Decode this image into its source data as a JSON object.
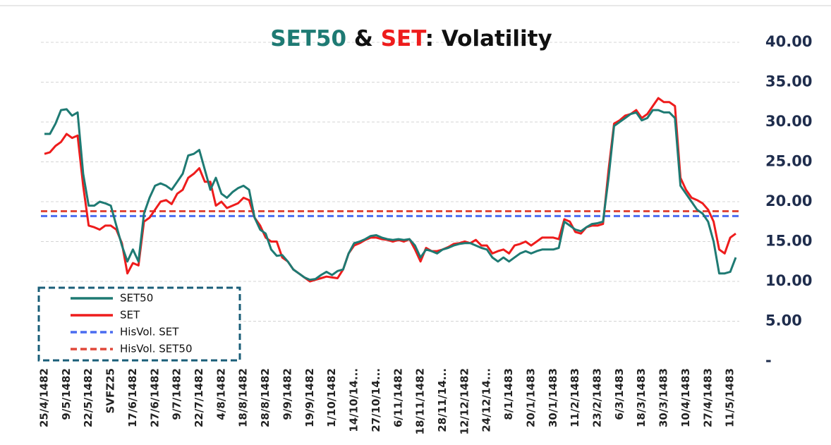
{
  "chart_data": {
    "type": "line",
    "title": [
      {
        "text": "SET50",
        "color": "#1e7a73"
      },
      {
        "text": " & ",
        "color": "#111111"
      },
      {
        "text": "SET",
        "color": "#ee1c1c"
      },
      {
        "text": ": Volatility",
        "color": "#111111"
      }
    ],
    "categories": [
      "25/4/1482",
      null,
      null,
      null,
      "9/5/1482",
      null,
      null,
      null,
      "22/5/1482",
      null,
      null,
      null,
      "SVFZ25",
      null,
      null,
      null,
      "17/6/1482",
      null,
      null,
      null,
      "27/6/1482",
      null,
      null,
      null,
      "9/7/1482",
      null,
      null,
      null,
      "22/7/1482",
      null,
      null,
      null,
      "4/8/1482",
      null,
      null,
      null,
      "18/8/1482",
      null,
      null,
      null,
      "28/8/1482",
      null,
      null,
      null,
      "9/9/1482",
      null,
      null,
      null,
      "19/9/1482",
      null,
      null,
      null,
      "1/10/1482",
      null,
      null,
      null,
      "14/10/14...",
      null,
      null,
      null,
      "27/10/14...",
      null,
      null,
      null,
      "6/11/1482",
      null,
      null,
      null,
      "18/11/1482",
      null,
      null,
      null,
      "28/11/14...",
      null,
      null,
      null,
      "12/12/1482",
      null,
      null,
      null,
      "24/12/14...",
      null,
      null,
      null,
      "8/1/1483",
      null,
      null,
      null,
      "20/1/1483",
      null,
      null,
      null,
      "30/1/1483",
      null,
      null,
      null,
      "11/2/1483",
      null,
      null,
      null,
      "23/2/1483",
      null,
      null,
      null,
      "6/3/1483",
      null,
      null,
      null,
      "18/3/1483",
      null,
      null,
      null,
      "30/3/1483",
      null,
      null,
      null,
      "10/4/1483",
      null,
      null,
      null,
      "27/4/1483",
      null,
      null,
      null,
      "11/5/1483",
      null
    ],
    "series": [
      {
        "name": "SET50",
        "color": "#1e7a73",
        "values": [
          28.5,
          28.5,
          29.8,
          31.5,
          31.6,
          30.8,
          31.2,
          23.5,
          19.5,
          19.5,
          20,
          19.8,
          19.5,
          17,
          14.5,
          12.5,
          14,
          12.5,
          18.5,
          20.5,
          22,
          22.3,
          22,
          21.5,
          22.5,
          23.5,
          25.8,
          26,
          26.5,
          24,
          21.5,
          23,
          21,
          20.5,
          21.2,
          21.7,
          22,
          21.5,
          18,
          16.5,
          16,
          14,
          13.2,
          13.3,
          12.5,
          11.5,
          11,
          10.5,
          10.2,
          10.3,
          10.8,
          11.2,
          10.8,
          11.3,
          11.5,
          13.5,
          14.8,
          15,
          15.3,
          15.7,
          15.8,
          15.5,
          15.3,
          15.2,
          15.3,
          15.2,
          15.3,
          14.5,
          13,
          14,
          13.8,
          13.5,
          14,
          14.2,
          14.5,
          14.7,
          14.8,
          14.8,
          14.5,
          14.2,
          14,
          13,
          12.5,
          13,
          12.5,
          13,
          13.5,
          13.8,
          13.5,
          13.8,
          14,
          14,
          14,
          14.2,
          17.5,
          17,
          16.5,
          16.3,
          16.8,
          17.2,
          17.3,
          17.5,
          23,
          29.5,
          30,
          30.5,
          31,
          31.2,
          30.2,
          30.5,
          31.5,
          31.5,
          31.2,
          31.2,
          30.5,
          22,
          21,
          20,
          19,
          18.5,
          17.5,
          15,
          11,
          11,
          11.2,
          13
        ]
      },
      {
        "name": "SET",
        "color": "#ee1c1c",
        "values": [
          26,
          26.2,
          27,
          27.5,
          28.5,
          28,
          28.3,
          22,
          17,
          16.8,
          16.5,
          17,
          17,
          16.5,
          14.8,
          11,
          12.3,
          12,
          17.5,
          18,
          19,
          20,
          20.2,
          19.7,
          21,
          21.5,
          23,
          23.5,
          24.2,
          22.5,
          22.5,
          19.5,
          20,
          19.2,
          19.5,
          19.8,
          20.5,
          20.2,
          18,
          17,
          15.5,
          15,
          15,
          13,
          12.5,
          11.5,
          11,
          10.5,
          10,
          10.2,
          10.4,
          10.6,
          10.5,
          10.4,
          11.5,
          13.5,
          14.5,
          14.8,
          15.2,
          15.5,
          15.5,
          15.3,
          15.2,
          15,
          15.2,
          15,
          15.3,
          14,
          12.5,
          14.2,
          13.8,
          13.8,
          14,
          14.3,
          14.7,
          14.8,
          15,
          14.8,
          15.2,
          14.5,
          14.5,
          13.5,
          13.8,
          14,
          13.5,
          14.5,
          14.7,
          15,
          14.5,
          15,
          15.5,
          15.5,
          15.5,
          15.3,
          17.8,
          17.5,
          16.2,
          16,
          16.8,
          17,
          17,
          17.2,
          24,
          29.8,
          30.2,
          30.8,
          31,
          31.5,
          30.5,
          31,
          32,
          33,
          32.5,
          32.5,
          32,
          23,
          21.5,
          20.5,
          20.2,
          19.8,
          19,
          17.5,
          14,
          13.5,
          15.5,
          16
        ]
      }
    ],
    "reference_lines": [
      {
        "name": "HisVol. SET",
        "color": "#4a6cf0",
        "value": 18.2
      },
      {
        "name": "HisVol. SET50",
        "color": "#e0483a",
        "value": 18.8
      }
    ],
    "ylim": [
      0,
      40
    ],
    "yticks": [
      {
        "value": 0,
        "label": "-"
      },
      {
        "value": 5,
        "label": "5.00"
      },
      {
        "value": 10,
        "label": "10.00"
      },
      {
        "value": 15,
        "label": "15.00"
      },
      {
        "value": 20,
        "label": "20.00"
      },
      {
        "value": 25,
        "label": "25.00"
      },
      {
        "value": 30,
        "label": "30.00"
      },
      {
        "value": 35,
        "label": "35.00"
      },
      {
        "value": 40,
        "label": "40.00"
      }
    ],
    "grid": true,
    "legend": "lower left"
  }
}
